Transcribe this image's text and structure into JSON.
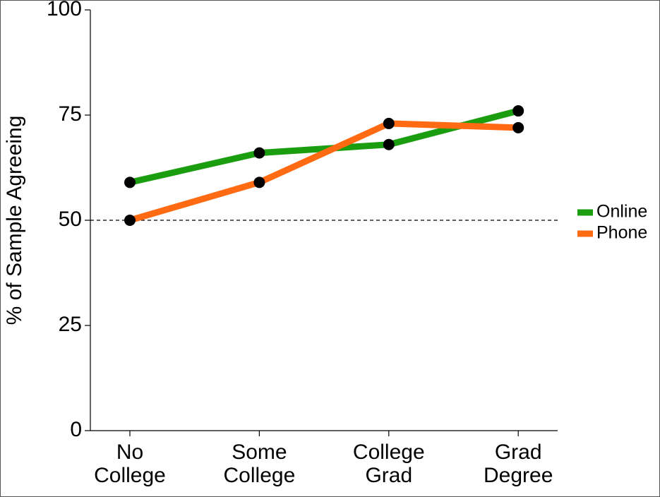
{
  "chart_data": {
    "type": "line",
    "ylabel": "% of Sample Agreeing",
    "categories": [
      "No College",
      "Some College",
      "College Grad",
      "Grad Degree"
    ],
    "series": [
      {
        "name": "Online",
        "color": "#1a9e0f",
        "values": [
          59,
          66,
          68,
          76
        ]
      },
      {
        "name": "Phone",
        "color": "#ff6a13",
        "values": [
          50,
          59,
          73,
          72
        ]
      }
    ],
    "ylim": [
      0,
      100
    ],
    "yticks": [
      0,
      25,
      50,
      75,
      100
    ],
    "reference_line": 50,
    "marker_color": "#000000",
    "legend": "right"
  }
}
